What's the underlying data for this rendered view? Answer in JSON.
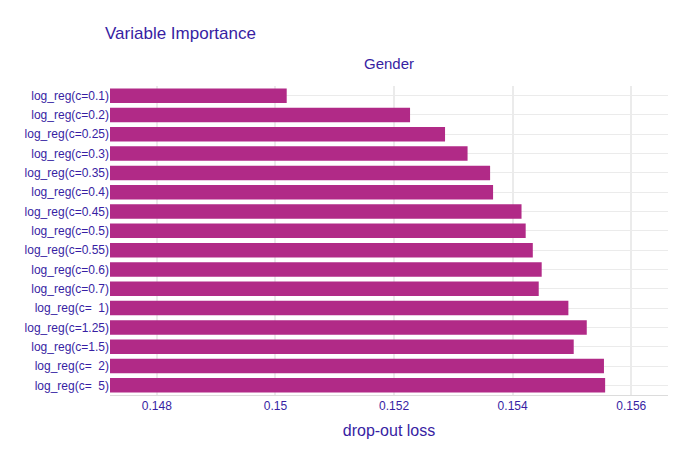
{
  "chart_data": {
    "type": "bar",
    "orientation": "horizontal",
    "title": "Variable Importance",
    "subtitle": "Gender",
    "x_label": "drop-out loss",
    "categories": [
      "log_reg(c=0.1)",
      "log_reg(c=0.2)",
      "log_reg(c=0.25)",
      "log_reg(c=0.3)",
      "log_reg(c=0.35)",
      "log_reg(c=0.4)",
      "log_reg(c=0.45)",
      "log_reg(c=0.5)",
      "log_reg(c=0.55)",
      "log_reg(c=0.6)",
      "log_reg(c=0.7)",
      "log_reg(c=  1)",
      "log_reg(c=1.25)",
      "log_reg(c=1.5)",
      "log_reg(c=  2)",
      "log_reg(c=  5)"
    ],
    "values": [
      0.15019,
      0.15227,
      0.15286,
      0.15324,
      0.15362,
      0.15367,
      0.15415,
      0.15422,
      0.15434,
      0.15449,
      0.15444,
      0.15494,
      0.15525,
      0.15503,
      0.15554,
      0.15556
    ],
    "color": "#b12a87",
    "xlim": [
      0.14721,
      0.15662
    ],
    "xticks": [
      {
        "value": 0.148,
        "label": "0.148"
      },
      {
        "value": 0.15,
        "label": "0.15"
      },
      {
        "value": 0.152,
        "label": "0.152"
      },
      {
        "value": 0.154,
        "label": "0.154"
      },
      {
        "value": 0.156,
        "label": "0.156"
      }
    ],
    "grid": true
  }
}
